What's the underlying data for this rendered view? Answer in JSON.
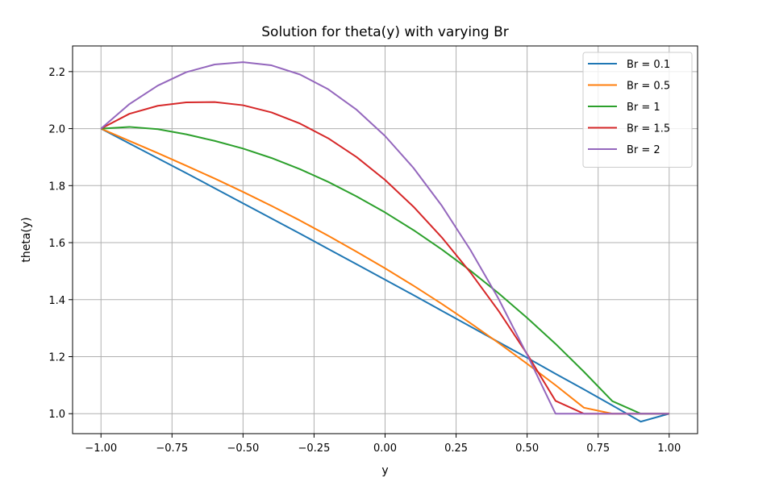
{
  "chart_data": {
    "type": "line",
    "title": "Solution for theta(y) with varying Br",
    "xlabel": "y",
    "ylabel": "theta(y)",
    "xlim": [
      -1.1,
      1.1
    ],
    "ylim": [
      0.93,
      2.29
    ],
    "xticks": [
      -1.0,
      -0.75,
      -0.5,
      -0.25,
      0.0,
      0.25,
      0.5,
      0.75,
      1.0
    ],
    "xtick_labels": [
      "−1.00",
      "−0.75",
      "−0.50",
      "−0.25",
      "0.00",
      "0.25",
      "0.50",
      "0.75",
      "1.00"
    ],
    "yticks": [
      1.0,
      1.2,
      1.4,
      1.6,
      1.8,
      2.0,
      2.2
    ],
    "ytick_labels": [
      "1.0",
      "1.2",
      "1.4",
      "1.6",
      "1.8",
      "2.0",
      "2.2"
    ],
    "grid": true,
    "legend_position": "top-right",
    "x": [
      -1.0,
      -0.9,
      -0.8,
      -0.7,
      -0.6,
      -0.5,
      -0.4,
      -0.3,
      -0.2,
      -0.1,
      0.0,
      0.1,
      0.2,
      0.3,
      0.4,
      0.5,
      0.6,
      0.7,
      0.8,
      0.9,
      1.0
    ],
    "series": [
      {
        "name": "Br = 0.1",
        "color": "#1f77b4",
        "values": [
          2.0,
          1.948,
          1.896,
          1.844,
          1.791,
          1.738,
          1.685,
          1.632,
          1.578,
          1.524,
          1.47,
          1.416,
          1.361,
          1.306,
          1.251,
          1.196,
          1.14,
          1.085,
          1.029,
          0.972,
          1.0
        ]
      },
      {
        "name": "Br = 0.5",
        "color": "#ff7f0e",
        "values": [
          2.0,
          1.957,
          1.914,
          1.87,
          1.825,
          1.778,
          1.729,
          1.678,
          1.624,
          1.568,
          1.51,
          1.449,
          1.385,
          1.318,
          1.248,
          1.175,
          1.1,
          1.021,
          1.0,
          1.0,
          1.0
        ]
      },
      {
        "name": "Br = 1",
        "color": "#2ca02c",
        "values": [
          2.0,
          2.006,
          1.998,
          1.98,
          1.957,
          1.93,
          1.897,
          1.858,
          1.813,
          1.762,
          1.706,
          1.644,
          1.576,
          1.502,
          1.422,
          1.336,
          1.245,
          1.147,
          1.044,
          1.0,
          1.0
        ]
      },
      {
        "name": "Br = 1.5",
        "color": "#d62728",
        "values": [
          2.0,
          2.052,
          2.08,
          2.092,
          2.093,
          2.082,
          2.057,
          2.018,
          1.966,
          1.9,
          1.82,
          1.726,
          1.618,
          1.496,
          1.36,
          1.209,
          1.045,
          1.0,
          1.0,
          1.0,
          1.0
        ]
      },
      {
        "name": "Br = 2",
        "color": "#9467bd",
        "values": [
          2.0,
          2.086,
          2.151,
          2.198,
          2.225,
          2.233,
          2.222,
          2.19,
          2.138,
          2.066,
          1.974,
          1.862,
          1.729,
          1.575,
          1.402,
          1.207,
          1.0,
          1.0,
          1.0,
          1.0,
          1.0
        ]
      }
    ]
  }
}
